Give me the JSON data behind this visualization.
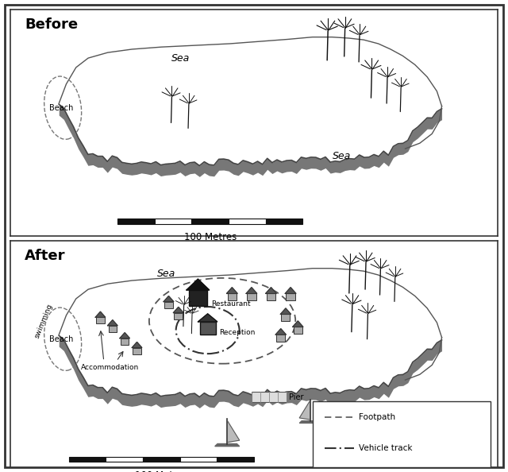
{
  "title_before": "Before",
  "title_after": "After",
  "scale_label": "100 Metres",
  "legend_footpath": "Footpath",
  "legend_vehicle": "Vehicle track",
  "sea_label_before_1": "Sea",
  "sea_label_before_2": "Sea",
  "sea_label_after": "Sea",
  "beach_label": "Beach",
  "swimming_label": "swimming",
  "restaurant_label": "Restaurant",
  "reception_label": "Reception",
  "accommodation_label": "Accommodation",
  "pier_label": "Pier"
}
